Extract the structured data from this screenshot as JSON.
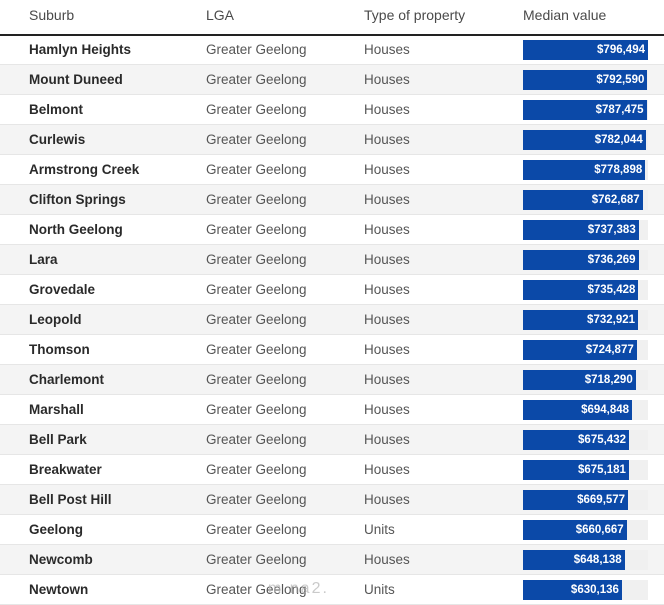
{
  "columns": {
    "suburb": "Suburb",
    "lga": "LGA",
    "property_type": "Type of property",
    "median_value": "Median value"
  },
  "colors": {
    "bar": "#0b49a8",
    "bar_track": "#f0f0f0",
    "alt_row": "#f4f4f4"
  },
  "bar_scale_max": 796494,
  "rows": [
    {
      "suburb": "Hamlyn Heights",
      "lga": "Greater Geelong",
      "type": "Houses",
      "value_label": "$796,494",
      "value": 796494
    },
    {
      "suburb": "Mount Duneed",
      "lga": "Greater Geelong",
      "type": "Houses",
      "value_label": "$792,590",
      "value": 792590
    },
    {
      "suburb": "Belmont",
      "lga": "Greater Geelong",
      "type": "Houses",
      "value_label": "$787,475",
      "value": 787475
    },
    {
      "suburb": "Curlewis",
      "lga": "Greater Geelong",
      "type": "Houses",
      "value_label": "$782,044",
      "value": 782044
    },
    {
      "suburb": "Armstrong Creek",
      "lga": "Greater Geelong",
      "type": "Houses",
      "value_label": "$778,898",
      "value": 778898
    },
    {
      "suburb": "Clifton Springs",
      "lga": "Greater Geelong",
      "type": "Houses",
      "value_label": "$762,687",
      "value": 762687
    },
    {
      "suburb": "North Geelong",
      "lga": "Greater Geelong",
      "type": "Houses",
      "value_label": "$737,383",
      "value": 737383
    },
    {
      "suburb": "Lara",
      "lga": "Greater Geelong",
      "type": "Houses",
      "value_label": "$736,269",
      "value": 736269
    },
    {
      "suburb": "Grovedale",
      "lga": "Greater Geelong",
      "type": "Houses",
      "value_label": "$735,428",
      "value": 735428
    },
    {
      "suburb": "Leopold",
      "lga": "Greater Geelong",
      "type": "Houses",
      "value_label": "$732,921",
      "value": 732921
    },
    {
      "suburb": "Thomson",
      "lga": "Greater Geelong",
      "type": "Houses",
      "value_label": "$724,877",
      "value": 724877
    },
    {
      "suburb": "Charlemont",
      "lga": "Greater Geelong",
      "type": "Houses",
      "value_label": "$718,290",
      "value": 718290
    },
    {
      "suburb": "Marshall",
      "lga": "Greater Geelong",
      "type": "Houses",
      "value_label": "$694,848",
      "value": 694848
    },
    {
      "suburb": "Bell Park",
      "lga": "Greater Geelong",
      "type": "Houses",
      "value_label": "$675,432",
      "value": 675432
    },
    {
      "suburb": "Breakwater",
      "lga": "Greater Geelong",
      "type": "Houses",
      "value_label": "$675,181",
      "value": 675181
    },
    {
      "suburb": "Bell Post Hill",
      "lga": "Greater Geelong",
      "type": "Houses",
      "value_label": "$669,577",
      "value": 669577
    },
    {
      "suburb": "Geelong",
      "lga": "Greater Geelong",
      "type": "Units",
      "value_label": "$660,667",
      "value": 660667
    },
    {
      "suburb": "Newcomb",
      "lga": "Greater Geelong",
      "type": "Houses",
      "value_label": "$648,138",
      "value": 648138
    },
    {
      "suburb": "Newtown",
      "lga": "Greater Geelong",
      "type": "Units",
      "value_label": "$630,136",
      "value": 630136
    }
  ],
  "watermark": "m na2."
}
